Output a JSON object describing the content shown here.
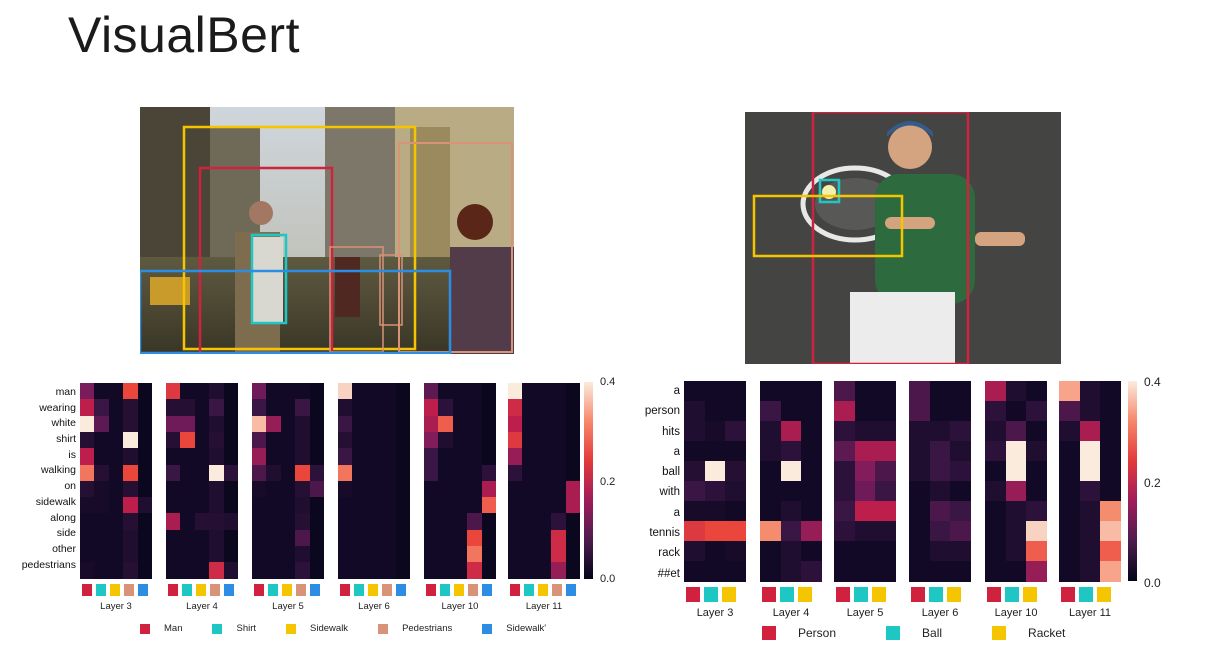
{
  "title": "VisualBert",
  "left": {
    "words": [
      "man",
      "wearing",
      "white",
      "shirt",
      "is",
      "walking",
      "on",
      "sidewalk",
      "along",
      "side",
      "other",
      "pedestrians"
    ],
    "layers": [
      "Layer 3",
      "Layer 4",
      "Layer 5",
      "Layer 6",
      "Layer 10",
      "Layer 11"
    ],
    "objects": [
      {
        "name": "Man",
        "color": "#d0223f"
      },
      {
        "name": "Shirt",
        "color": "#1ec7c4"
      },
      {
        "name": "Sidewalk",
        "color": "#f5c600"
      },
      {
        "name": "Pedestrians",
        "color": "#d99379"
      },
      {
        "name": "Sidewalk'",
        "color": "#2d8de2"
      }
    ],
    "colorbar_ticks": [
      "0.4",
      "0.2",
      "0.0"
    ],
    "heatmaps": [
      [
        [
          0.15,
          0.02,
          0.02,
          0.28,
          0.01
        ],
        [
          0.22,
          0.08,
          0.02,
          0.05,
          0.01
        ],
        [
          0.42,
          0.12,
          0.02,
          0.05,
          0.01
        ],
        [
          0.05,
          0.02,
          0.02,
          0.42,
          0.01
        ],
        [
          0.22,
          0.02,
          0.02,
          0.04,
          0.01
        ],
        [
          0.32,
          0.05,
          0.02,
          0.28,
          0.01
        ],
        [
          0.05,
          0.03,
          0.02,
          0.05,
          0.01
        ],
        [
          0.03,
          0.03,
          0.02,
          0.22,
          0.04
        ],
        [
          0.02,
          0.02,
          0.02,
          0.05,
          0.01
        ],
        [
          0.02,
          0.02,
          0.02,
          0.04,
          0.01
        ],
        [
          0.02,
          0.02,
          0.02,
          0.04,
          0.01
        ],
        [
          0.03,
          0.02,
          0.02,
          0.05,
          0.01
        ]
      ],
      [
        [
          0.26,
          0.02,
          0.02,
          0.04,
          0.01
        ],
        [
          0.05,
          0.05,
          0.02,
          0.08,
          0.01
        ],
        [
          0.14,
          0.14,
          0.02,
          0.04,
          0.01
        ],
        [
          0.05,
          0.28,
          0.02,
          0.05,
          0.01
        ],
        [
          0.02,
          0.02,
          0.02,
          0.04,
          0.01
        ],
        [
          0.08,
          0.02,
          0.02,
          0.42,
          0.06
        ],
        [
          0.02,
          0.02,
          0.02,
          0.04,
          0.01
        ],
        [
          0.02,
          0.02,
          0.02,
          0.04,
          0.01
        ],
        [
          0.2,
          0.02,
          0.05,
          0.05,
          0.04
        ],
        [
          0.02,
          0.02,
          0.02,
          0.04,
          0.01
        ],
        [
          0.02,
          0.02,
          0.02,
          0.04,
          0.01
        ],
        [
          0.02,
          0.02,
          0.02,
          0.24,
          0.04
        ]
      ],
      [
        [
          0.14,
          0.02,
          0.02,
          0.02,
          0.01
        ],
        [
          0.08,
          0.02,
          0.02,
          0.08,
          0.01
        ],
        [
          0.38,
          0.18,
          0.02,
          0.04,
          0.01
        ],
        [
          0.1,
          0.02,
          0.02,
          0.04,
          0.01
        ],
        [
          0.18,
          0.02,
          0.02,
          0.04,
          0.01
        ],
        [
          0.1,
          0.04,
          0.02,
          0.28,
          0.06
        ],
        [
          0.03,
          0.02,
          0.02,
          0.05,
          0.1
        ],
        [
          0.02,
          0.02,
          0.02,
          0.04,
          0.01
        ],
        [
          0.02,
          0.02,
          0.02,
          0.05,
          0.01
        ],
        [
          0.02,
          0.02,
          0.02,
          0.1,
          0.01
        ],
        [
          0.02,
          0.02,
          0.02,
          0.04,
          0.01
        ],
        [
          0.02,
          0.02,
          0.02,
          0.06,
          0.01
        ]
      ],
      [
        [
          0.4,
          0.02,
          0.02,
          0.02,
          0.01
        ],
        [
          0.04,
          0.02,
          0.02,
          0.02,
          0.01
        ],
        [
          0.08,
          0.02,
          0.02,
          0.02,
          0.01
        ],
        [
          0.05,
          0.02,
          0.02,
          0.02,
          0.01
        ],
        [
          0.08,
          0.02,
          0.02,
          0.02,
          0.01
        ],
        [
          0.32,
          0.02,
          0.02,
          0.02,
          0.01
        ],
        [
          0.03,
          0.02,
          0.02,
          0.02,
          0.01
        ],
        [
          0.02,
          0.02,
          0.02,
          0.02,
          0.01
        ],
        [
          0.02,
          0.02,
          0.02,
          0.02,
          0.01
        ],
        [
          0.02,
          0.02,
          0.02,
          0.02,
          0.01
        ],
        [
          0.02,
          0.02,
          0.02,
          0.02,
          0.01
        ],
        [
          0.02,
          0.02,
          0.02,
          0.02,
          0.01
        ]
      ],
      [
        [
          0.12,
          0.02,
          0.02,
          0.02,
          0.01
        ],
        [
          0.22,
          0.06,
          0.02,
          0.02,
          0.01
        ],
        [
          0.2,
          0.3,
          0.02,
          0.02,
          0.01
        ],
        [
          0.16,
          0.04,
          0.02,
          0.02,
          0.01
        ],
        [
          0.08,
          0.02,
          0.02,
          0.02,
          0.01
        ],
        [
          0.08,
          0.02,
          0.02,
          0.02,
          0.06
        ],
        [
          0.02,
          0.02,
          0.02,
          0.02,
          0.2
        ],
        [
          0.02,
          0.02,
          0.02,
          0.02,
          0.3
        ],
        [
          0.02,
          0.02,
          0.02,
          0.1,
          0.01
        ],
        [
          0.02,
          0.02,
          0.02,
          0.28,
          0.01
        ],
        [
          0.02,
          0.02,
          0.02,
          0.32,
          0.01
        ],
        [
          0.02,
          0.02,
          0.02,
          0.24,
          0.01
        ]
      ],
      [
        [
          0.42,
          0.02,
          0.02,
          0.02,
          0.01
        ],
        [
          0.24,
          0.02,
          0.02,
          0.02,
          0.01
        ],
        [
          0.22,
          0.02,
          0.02,
          0.02,
          0.01
        ],
        [
          0.26,
          0.02,
          0.02,
          0.02,
          0.01
        ],
        [
          0.18,
          0.02,
          0.02,
          0.02,
          0.01
        ],
        [
          0.06,
          0.02,
          0.02,
          0.02,
          0.01
        ],
        [
          0.02,
          0.02,
          0.02,
          0.02,
          0.2
        ],
        [
          0.02,
          0.02,
          0.02,
          0.02,
          0.2
        ],
        [
          0.02,
          0.02,
          0.02,
          0.06,
          0.01
        ],
        [
          0.02,
          0.02,
          0.02,
          0.24,
          0.01
        ],
        [
          0.02,
          0.02,
          0.02,
          0.24,
          0.01
        ],
        [
          0.02,
          0.02,
          0.02,
          0.18,
          0.01
        ]
      ]
    ]
  },
  "right": {
    "words": [
      "a",
      "person",
      "hits",
      "a",
      "ball",
      "with",
      "a",
      "tennis",
      "rack",
      "##et"
    ],
    "layers": [
      "Layer 3",
      "Layer 4",
      "Layer 5",
      "Layer 6",
      "Layer 10",
      "Layer 11"
    ],
    "objects": [
      {
        "name": "Person",
        "color": "#d0223f"
      },
      {
        "name": "Ball",
        "color": "#1ec7c4"
      },
      {
        "name": "Racket",
        "color": "#f5c600"
      }
    ],
    "colorbar_ticks": [
      "0.4",
      "0.2",
      "0.0"
    ],
    "heatmaps": [
      [
        [
          0.02,
          0.02,
          0.02
        ],
        [
          0.04,
          0.02,
          0.02
        ],
        [
          0.04,
          0.03,
          0.06
        ],
        [
          0.02,
          0.02,
          0.02
        ],
        [
          0.05,
          0.42,
          0.05
        ],
        [
          0.08,
          0.06,
          0.04
        ],
        [
          0.03,
          0.03,
          0.02
        ],
        [
          0.26,
          0.28,
          0.28
        ],
        [
          0.04,
          0.02,
          0.03
        ],
        [
          0.02,
          0.02,
          0.02
        ]
      ],
      [
        [
          0.02,
          0.02,
          0.02
        ],
        [
          0.08,
          0.02,
          0.02
        ],
        [
          0.04,
          0.2,
          0.02
        ],
        [
          0.04,
          0.06,
          0.02
        ],
        [
          0.02,
          0.42,
          0.02
        ],
        [
          0.02,
          0.02,
          0.02
        ],
        [
          0.02,
          0.04,
          0.02
        ],
        [
          0.34,
          0.08,
          0.18
        ],
        [
          0.02,
          0.04,
          0.02
        ],
        [
          0.02,
          0.04,
          0.06
        ]
      ],
      [
        [
          0.1,
          0.02,
          0.02
        ],
        [
          0.2,
          0.02,
          0.02
        ],
        [
          0.06,
          0.04,
          0.04
        ],
        [
          0.12,
          0.2,
          0.2
        ],
        [
          0.06,
          0.16,
          0.1
        ],
        [
          0.06,
          0.14,
          0.08
        ],
        [
          0.08,
          0.22,
          0.22
        ],
        [
          0.06,
          0.04,
          0.04
        ],
        [
          0.02,
          0.02,
          0.02
        ],
        [
          0.02,
          0.02,
          0.02
        ]
      ],
      [
        [
          0.1,
          0.02,
          0.02
        ],
        [
          0.1,
          0.02,
          0.02
        ],
        [
          0.04,
          0.04,
          0.06
        ],
        [
          0.04,
          0.08,
          0.04
        ],
        [
          0.04,
          0.08,
          0.06
        ],
        [
          0.02,
          0.04,
          0.02
        ],
        [
          0.02,
          0.1,
          0.08
        ],
        [
          0.02,
          0.08,
          0.1
        ],
        [
          0.02,
          0.04,
          0.04
        ],
        [
          0.02,
          0.02,
          0.02
        ]
      ],
      [
        [
          0.2,
          0.04,
          0.02
        ],
        [
          0.06,
          0.02,
          0.06
        ],
        [
          0.04,
          0.1,
          0.02
        ],
        [
          0.06,
          0.42,
          0.04
        ],
        [
          0.02,
          0.42,
          0.02
        ],
        [
          0.04,
          0.18,
          0.02
        ],
        [
          0.02,
          0.04,
          0.06
        ],
        [
          0.02,
          0.04,
          0.4
        ],
        [
          0.02,
          0.04,
          0.3
        ],
        [
          0.02,
          0.02,
          0.18
        ]
      ],
      [
        [
          0.36,
          0.04,
          0.02
        ],
        [
          0.1,
          0.04,
          0.02
        ],
        [
          0.04,
          0.2,
          0.02
        ],
        [
          0.02,
          0.42,
          0.02
        ],
        [
          0.02,
          0.42,
          0.02
        ],
        [
          0.02,
          0.06,
          0.02
        ],
        [
          0.02,
          0.04,
          0.34
        ],
        [
          0.02,
          0.04,
          0.38
        ],
        [
          0.02,
          0.04,
          0.3
        ],
        [
          0.02,
          0.04,
          0.36
        ]
      ]
    ]
  }
}
